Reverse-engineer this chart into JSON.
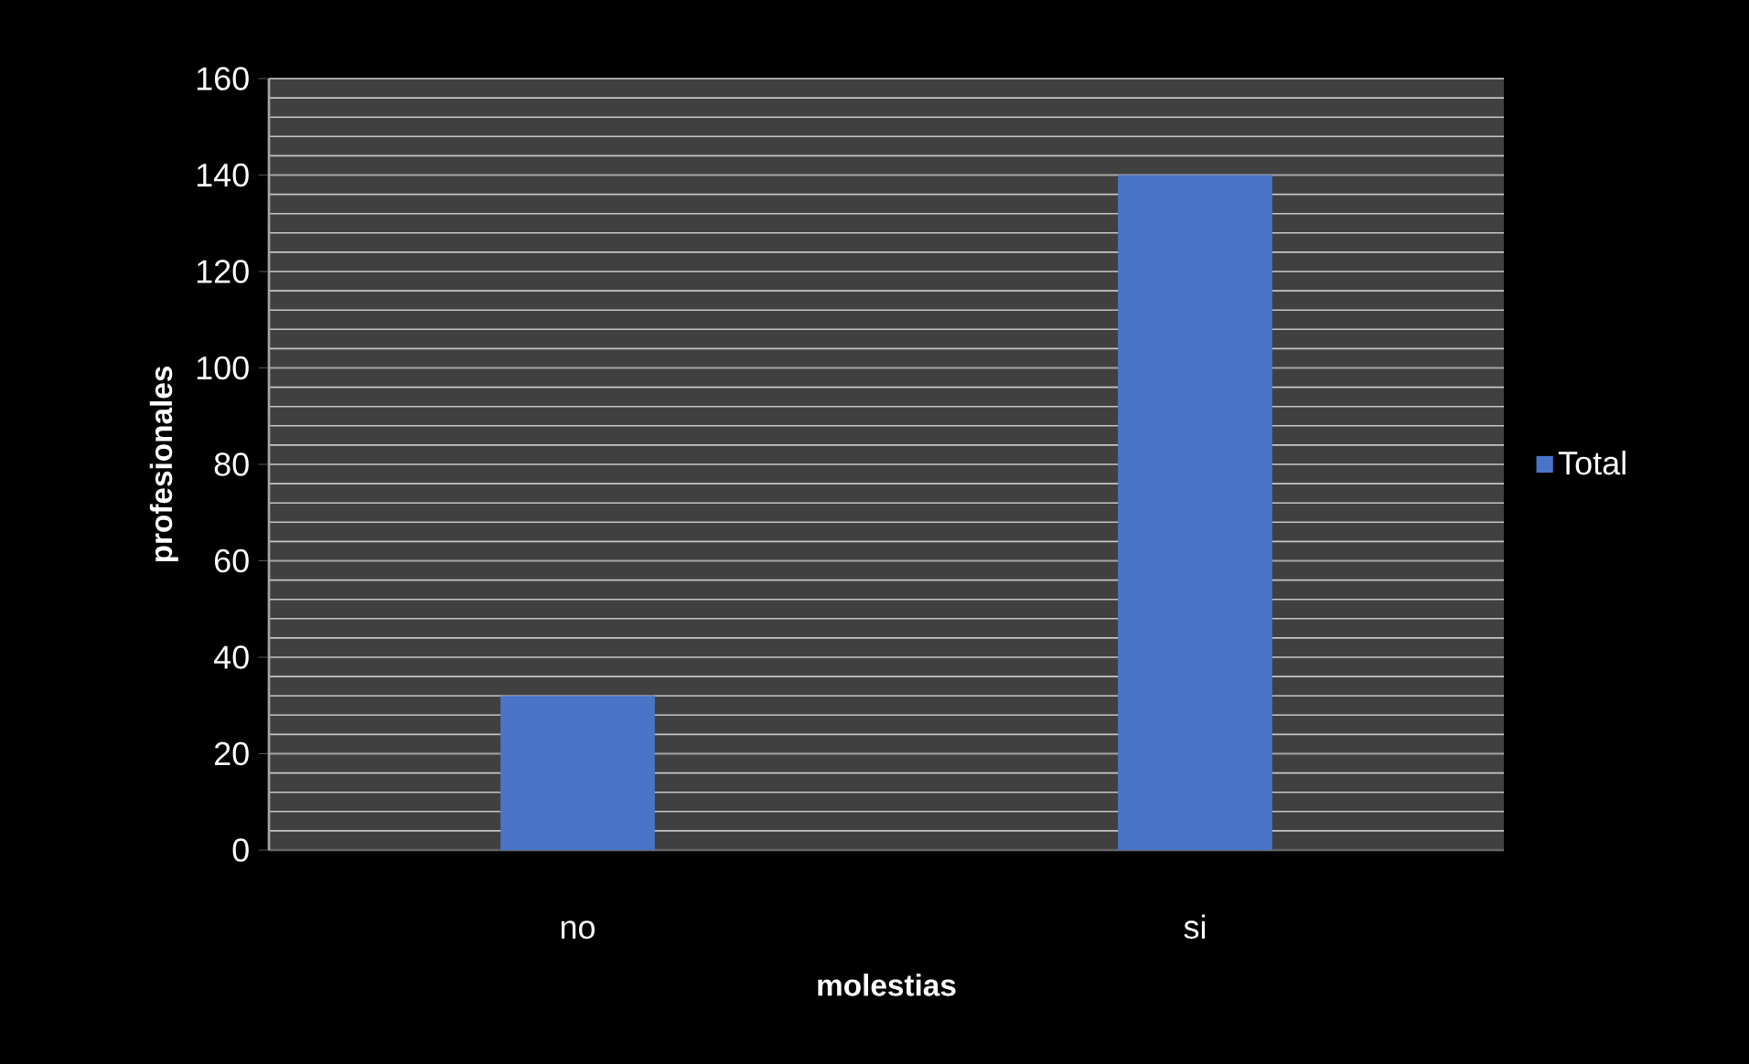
{
  "chart_data": {
    "type": "bar",
    "xlabel": "molestias",
    "ylabel": "profesionales",
    "categories": [
      "no",
      "si"
    ],
    "series": [
      {
        "name": "Total",
        "color": "#4a74c8",
        "values": [
          32,
          140
        ]
      }
    ],
    "ylim": [
      0,
      160
    ],
    "yticks": [
      0,
      20,
      40,
      60,
      80,
      100,
      120,
      140,
      160
    ],
    "grid": "y",
    "legend": "right"
  }
}
